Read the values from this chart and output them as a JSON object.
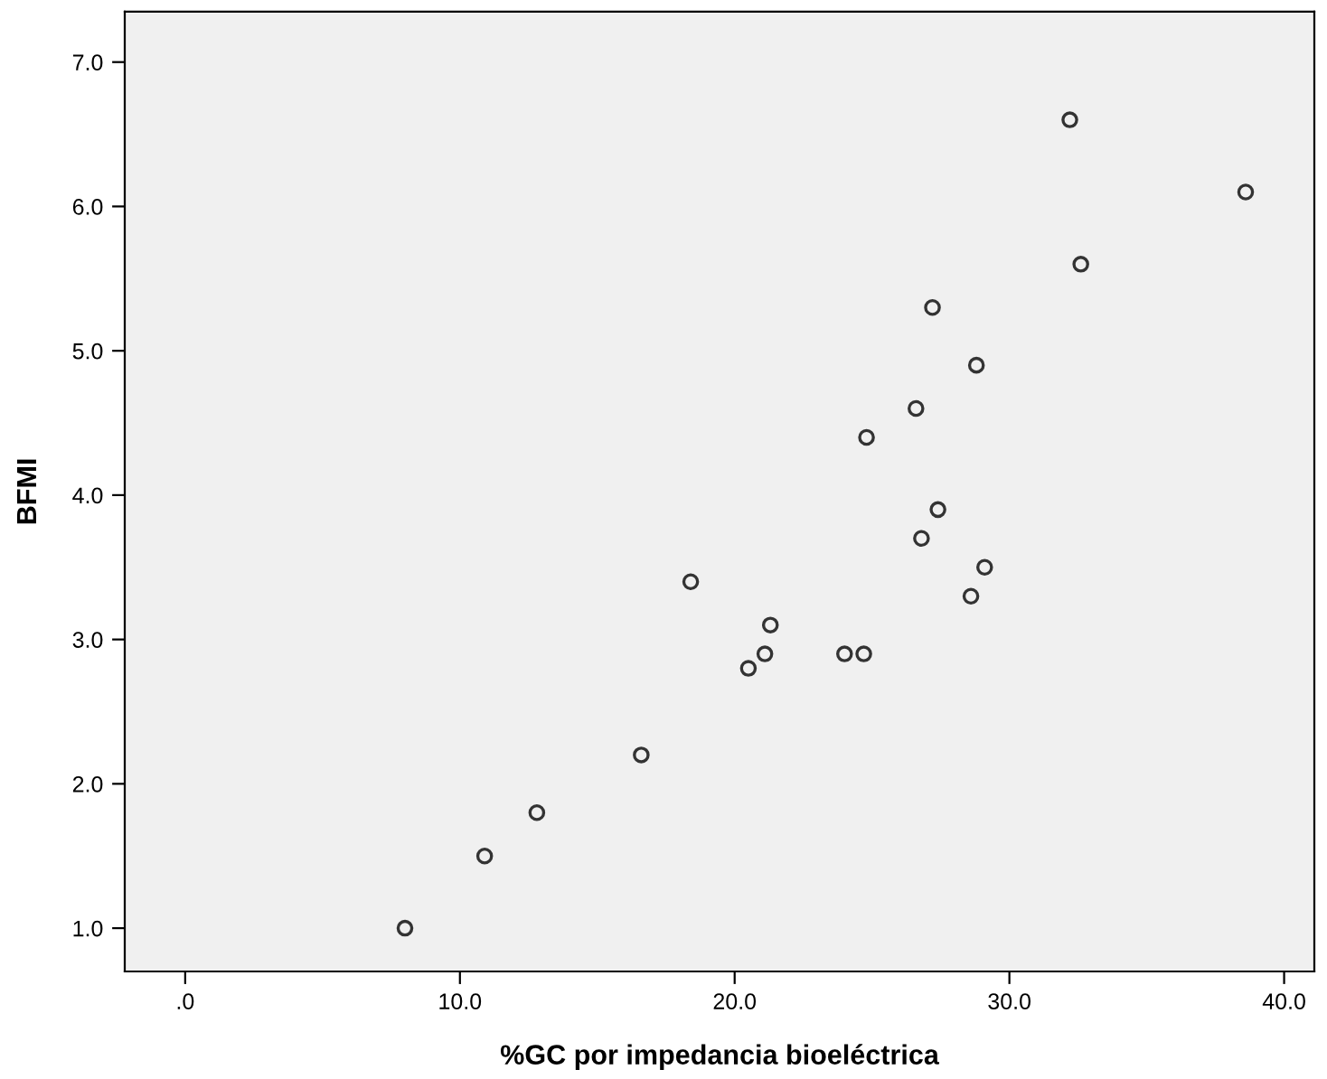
{
  "chart_data": {
    "type": "scatter",
    "xlabel": "%GC por impedancia bioeléctrica",
    "ylabel": "BFMI",
    "x": [
      8.0,
      10.9,
      12.8,
      16.6,
      18.4,
      21.3,
      21.1,
      20.5,
      24.0,
      24.7,
      24.8,
      26.6,
      26.8,
      27.4,
      27.2,
      28.8,
      28.6,
      29.1,
      32.2,
      32.6,
      38.6
    ],
    "series": [
      {
        "color": "#333333",
        "values": [
          1.0,
          1.5,
          1.8,
          2.2,
          3.4,
          3.1,
          2.9,
          2.8,
          2.9,
          2.9,
          4.4,
          4.6,
          3.7,
          3.9,
          5.3,
          4.9,
          3.3,
          3.5,
          6.6,
          5.6,
          6.1
        ]
      }
    ],
    "marker": "circle",
    "grid": false,
    "legend": false,
    "xlim": [
      -2.2,
      41.1
    ],
    "ylim": [
      0.7,
      7.35
    ],
    "xticks": [
      {
        "value": 0,
        "label": ".0"
      },
      {
        "value": 10,
        "label": "10.0"
      },
      {
        "value": 20,
        "label": "20.0"
      },
      {
        "value": 30,
        "label": "30.0"
      },
      {
        "value": 40,
        "label": "40.0"
      }
    ],
    "yticks": [
      {
        "value": 1,
        "label": "1.0"
      },
      {
        "value": 2,
        "label": "2.0"
      },
      {
        "value": 3,
        "label": "3.0"
      },
      {
        "value": 4,
        "label": "4.0"
      },
      {
        "value": 5,
        "label": "5.0"
      },
      {
        "value": 6,
        "label": "6.0"
      },
      {
        "value": 7,
        "label": "7.0"
      }
    ]
  }
}
